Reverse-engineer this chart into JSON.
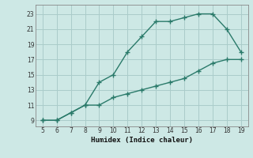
{
  "upper_x": [
    5,
    6,
    7,
    8,
    9,
    10,
    11,
    12,
    13,
    14,
    15,
    16,
    17,
    18,
    19
  ],
  "upper_y": [
    9,
    9,
    10,
    11,
    14,
    15,
    18,
    20,
    22,
    22,
    22.5,
    23,
    23,
    21,
    18
  ],
  "lower_x": [
    5,
    6,
    7,
    8,
    9,
    10,
    11,
    12,
    13,
    14,
    15,
    16,
    17,
    18,
    19
  ],
  "lower_y": [
    9,
    9,
    10,
    11,
    11,
    12,
    12.5,
    13,
    13.5,
    14,
    14.5,
    15.5,
    16.5,
    17,
    17
  ],
  "xlabel": "Humidex (Indice chaleur)",
  "xlim": [
    4.5,
    19.5
  ],
  "ylim": [
    8.2,
    24.2
  ],
  "xticks": [
    5,
    6,
    7,
    8,
    9,
    10,
    11,
    12,
    13,
    14,
    15,
    16,
    17,
    18,
    19
  ],
  "yticks": [
    9,
    11,
    13,
    15,
    17,
    19,
    21,
    23
  ],
  "line_color": "#2a7a6a",
  "bg_color": "#cde8e5",
  "grid_color": "#aaccca",
  "spine_color": "#888888"
}
